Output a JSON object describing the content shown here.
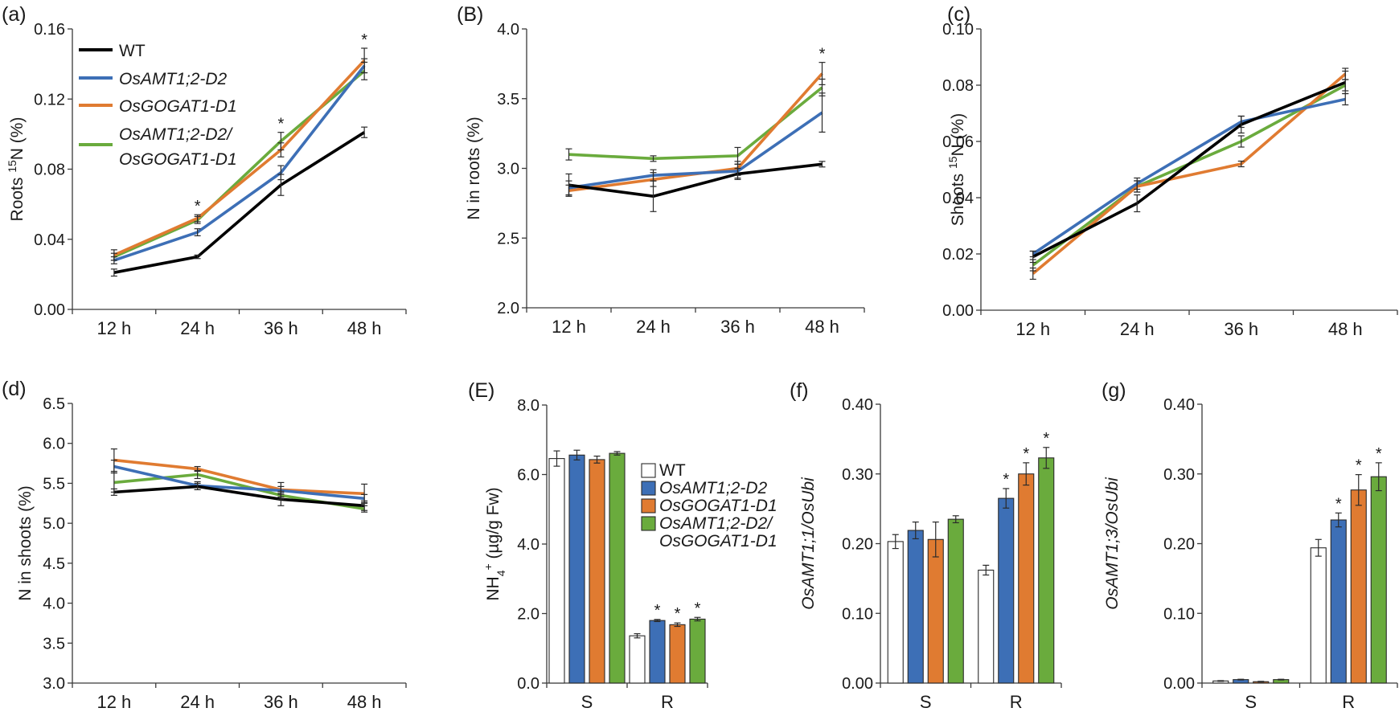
{
  "colors": {
    "WT": "#000000",
    "OsAMT1;2-D2": "#3d6fb6",
    "OsGOGAT1-D1": "#e07b31",
    "OsAMT1;2-D2/OsGOGAT1-D1": "#6aab3d"
  },
  "chart_data": [
    {
      "id": "a",
      "panel_label": "(a)",
      "type": "line",
      "ylabel_main": "Roots ",
      "ylabel_sup": "15",
      "ylabel_tail": "N (%)",
      "x": [
        "12 h",
        "24 h",
        "36 h",
        "48 h"
      ],
      "ylim": [
        0,
        0.16
      ],
      "yticks": [
        "0.00",
        "0.04",
        "0.08",
        "0.12",
        "0.16"
      ],
      "legend": true,
      "legend_entries": [
        "WT",
        "OsAMT1;2-D2",
        "OsGOGAT1-D1",
        "OsAMT1;2-D2/",
        "OsGOGAT1-D1"
      ],
      "stars": [
        "",
        "*",
        "*",
        "*"
      ],
      "series": [
        {
          "name": "WT",
          "values": [
            0.021,
            0.03,
            0.071,
            0.101
          ],
          "err": [
            0.002,
            0.001,
            0.006,
            0.003
          ]
        },
        {
          "name": "OsAMT1;2-D2",
          "values": [
            0.028,
            0.044,
            0.078,
            0.139
          ],
          "err": [
            0.002,
            0.002,
            0.004,
            0.004
          ]
        },
        {
          "name": "OsGOGAT1-D1",
          "values": [
            0.031,
            0.052,
            0.091,
            0.142
          ],
          "err": [
            0.003,
            0.002,
            0.004,
            0.007
          ]
        },
        {
          "name": "OsAMT1;2-D2/OsGOGAT1-D1",
          "values": [
            0.03,
            0.051,
            0.096,
            0.136
          ],
          "err": [
            0.002,
            0.002,
            0.005,
            0.005
          ]
        }
      ]
    },
    {
      "id": "B",
      "panel_label": "(B)",
      "type": "line",
      "ylabel_main": "N in roots (%)",
      "x": [
        "12 h",
        "24 h",
        "36 h",
        "48 h"
      ],
      "ylim": [
        2.0,
        4.0
      ],
      "yticks": [
        "2.0",
        "2.5",
        "3.0",
        "3.5",
        "4.0"
      ],
      "stars": [
        "",
        "",
        "",
        "*"
      ],
      "series": [
        {
          "name": "WT",
          "values": [
            2.88,
            2.8,
            2.96,
            3.03
          ],
          "err": [
            0.08,
            0.11,
            0.04,
            0.02
          ]
        },
        {
          "name": "OsAMT1;2-D2",
          "values": [
            2.86,
            2.95,
            2.98,
            3.4
          ],
          "err": [
            0.05,
            0.04,
            0.05,
            0.14
          ]
        },
        {
          "name": "OsGOGAT1-D1",
          "values": [
            2.84,
            2.92,
            3.0,
            3.68
          ],
          "err": [
            0.04,
            0.05,
            0.05,
            0.08
          ]
        },
        {
          "name": "OsAMT1;2-D2/OsGOGAT1-D1",
          "values": [
            3.1,
            3.07,
            3.09,
            3.58
          ],
          "err": [
            0.04,
            0.02,
            0.06,
            0.06
          ]
        }
      ]
    },
    {
      "id": "c",
      "panel_label": "(c)",
      "type": "line",
      "ylabel_main": "Shoots ",
      "ylabel_sup": "15",
      "ylabel_tail": "N (%)",
      "x": [
        "12 h",
        "24 h",
        "36 h",
        "48 h"
      ],
      "ylim": [
        0,
        0.1
      ],
      "yticks": [
        "0.00",
        "0.02",
        "0.04",
        "0.06",
        "0.08",
        "0.10"
      ],
      "stars": [
        "",
        "",
        "",
        ""
      ],
      "series": [
        {
          "name": "WT",
          "values": [
            0.019,
            0.038,
            0.066,
            0.081
          ],
          "err": [
            0.002,
            0.003,
            0.003,
            0.004
          ]
        },
        {
          "name": "OsAMT1;2-D2",
          "values": [
            0.02,
            0.045,
            0.067,
            0.075
          ],
          "err": [
            0.001,
            0.002,
            0.002,
            0.002
          ]
        },
        {
          "name": "OsGOGAT1-D1",
          "values": [
            0.013,
            0.044,
            0.052,
            0.084
          ],
          "err": [
            0.002,
            0.002,
            0.001,
            0.002
          ]
        },
        {
          "name": "OsAMT1;2-D2/OsGOGAT1-D1",
          "values": [
            0.016,
            0.044,
            0.06,
            0.08
          ],
          "err": [
            0.002,
            0.002,
            0.002,
            0.002
          ]
        }
      ]
    },
    {
      "id": "d",
      "panel_label": "(d)",
      "type": "line",
      "ylabel_main": "N in shoots (%)",
      "x": [
        "12 h",
        "24 h",
        "36 h",
        "48 h"
      ],
      "ylim": [
        3.0,
        6.5
      ],
      "yticks": [
        "3.0",
        "3.5",
        "4.0",
        "4.5",
        "5.0",
        "5.5",
        "6.0",
        "6.5"
      ],
      "stars": [
        "",
        "",
        "",
        ""
      ],
      "series": [
        {
          "name": "WT",
          "values": [
            5.39,
            5.46,
            5.3,
            5.22
          ],
          "err": [
            0.04,
            0.04,
            0.08,
            0.06
          ]
        },
        {
          "name": "OsAMT1;2-D2",
          "values": [
            5.71,
            5.47,
            5.41,
            5.31
          ],
          "err": [
            0.08,
            0.05,
            0.05,
            0.05
          ]
        },
        {
          "name": "OsGOGAT1-D1",
          "values": [
            5.79,
            5.68,
            5.42,
            5.37
          ],
          "err": [
            0.14,
            0.03,
            0.09,
            0.12
          ]
        },
        {
          "name": "OsAMT1;2-D2/OsGOGAT1-D1",
          "values": [
            5.51,
            5.61,
            5.35,
            5.18
          ],
          "err": [
            0.12,
            0.05,
            0.05,
            0.04
          ]
        }
      ]
    },
    {
      "id": "E",
      "panel_label": "(E)",
      "type": "bar",
      "ylabel_main": "NH",
      "ylabel_sub": "4",
      "ylabel_sup": "+",
      "ylabel_tail": " (µg/g Fw)",
      "categories": [
        "S",
        "R"
      ],
      "ylim": [
        0,
        8.0
      ],
      "yticks": [
        "0.0",
        "2.0",
        "4.0",
        "6.0",
        "8.0"
      ],
      "legend": true,
      "legend_entries": [
        "WT",
        "OsAMT1;2-D2",
        "OsGOGAT1-D1",
        "OsAMT1;2-D2/",
        "OsGOGAT1-D1"
      ],
      "stars": [
        [
          "",
          "",
          "",
          ""
        ],
        [
          "",
          "*",
          "*",
          "*"
        ]
      ],
      "series": [
        {
          "name": "WT",
          "values": [
            6.46,
            1.36
          ],
          "err": [
            0.22,
            0.06
          ]
        },
        {
          "name": "OsAMT1;2-D2",
          "values": [
            6.56,
            1.8
          ],
          "err": [
            0.14,
            0.03
          ]
        },
        {
          "name": "OsGOGAT1-D1",
          "values": [
            6.43,
            1.68
          ],
          "err": [
            0.1,
            0.05
          ]
        },
        {
          "name": "OsAMT1;2-D2/OsGOGAT1-D1",
          "values": [
            6.61,
            1.84
          ],
          "err": [
            0.05,
            0.05
          ]
        }
      ]
    },
    {
      "id": "f",
      "panel_label": "(f)",
      "type": "bar",
      "ylabel_main": "OsAMT1;1/OsUbi",
      "ylabel_italic": true,
      "categories": [
        "S",
        "R"
      ],
      "ylim": [
        0,
        0.4
      ],
      "yticks": [
        "0.00",
        "0.10",
        "0.20",
        "0.30",
        "0.40"
      ],
      "stars": [
        [
          "",
          "",
          "",
          ""
        ],
        [
          "",
          "*",
          "*",
          "*"
        ]
      ],
      "series": [
        {
          "name": "WT",
          "values": [
            0.203,
            0.162
          ],
          "err": [
            0.01,
            0.007
          ]
        },
        {
          "name": "OsAMT1;2-D2",
          "values": [
            0.219,
            0.265
          ],
          "err": [
            0.012,
            0.014
          ]
        },
        {
          "name": "OsGOGAT1-D1",
          "values": [
            0.206,
            0.3
          ],
          "err": [
            0.025,
            0.016
          ]
        },
        {
          "name": "OsAMT1;2-D2/OsGOGAT1-D1",
          "values": [
            0.235,
            0.323
          ],
          "err": [
            0.005,
            0.015
          ]
        }
      ]
    },
    {
      "id": "g",
      "panel_label": "(g)",
      "type": "bar",
      "ylabel_main": "OsAMT1;3/OsUbi",
      "ylabel_italic": true,
      "categories": [
        "S",
        "R"
      ],
      "ylim": [
        0,
        0.4
      ],
      "yticks": [
        "0.00",
        "0.10",
        "0.20",
        "0.30",
        "0.40"
      ],
      "stars": [
        [
          "",
          "",
          "",
          ""
        ],
        [
          "",
          "*",
          "*",
          "*"
        ]
      ],
      "series": [
        {
          "name": "WT",
          "values": [
            0.003,
            0.194
          ],
          "err": [
            0.0005,
            0.012
          ]
        },
        {
          "name": "OsAMT1;2-D2",
          "values": [
            0.005,
            0.234
          ],
          "err": [
            0.0005,
            0.01
          ]
        },
        {
          "name": "OsGOGAT1-D1",
          "values": [
            0.002,
            0.277
          ],
          "err": [
            0.0005,
            0.022
          ]
        },
        {
          "name": "OsAMT1;2-D2/OsGOGAT1-D1",
          "values": [
            0.005,
            0.296
          ],
          "err": [
            0.0005,
            0.02
          ]
        }
      ]
    }
  ]
}
